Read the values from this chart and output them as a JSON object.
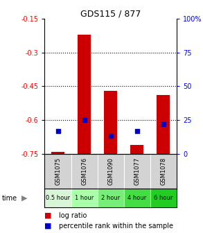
{
  "title": "GDS115 / 877",
  "samples": [
    "GSM1075",
    "GSM1076",
    "GSM1090",
    "GSM1077",
    "GSM1078"
  ],
  "time_labels": [
    "0.5 hour",
    "1 hour",
    "2 hour",
    "4 hour",
    "6 hour"
  ],
  "log_ratios": [
    -0.74,
    -0.22,
    -0.47,
    -0.71,
    -0.49
  ],
  "percentiles": [
    17,
    25,
    13,
    17,
    22
  ],
  "bar_bottom": -0.75,
  "bar_color": "#cc0000",
  "dot_color": "#0000cc",
  "ylim_left": [
    -0.75,
    -0.15
  ],
  "ylim_right": [
    0,
    100
  ],
  "yticks_left": [
    -0.75,
    -0.6,
    -0.45,
    -0.3,
    -0.15
  ],
  "yticks_right": [
    0,
    25,
    50,
    75,
    100
  ],
  "ytick_labels_left": [
    "-0.75",
    "-0.6",
    "-0.45",
    "-0.3",
    "-0.15"
  ],
  "ytick_labels_right": [
    "0",
    "25",
    "50",
    "75",
    "100%"
  ],
  "hlines": [
    -0.3,
    -0.45,
    -0.6
  ],
  "sample_bg": "#d3d3d3",
  "time_colors": [
    "#d8f5d8",
    "#aaffaa",
    "#77ee77",
    "#44dd44",
    "#22cc22"
  ],
  "bar_width": 0.5,
  "title_fontsize": 9,
  "tick_fontsize": 7,
  "label_fontsize": 6,
  "legend_fontsize": 7
}
